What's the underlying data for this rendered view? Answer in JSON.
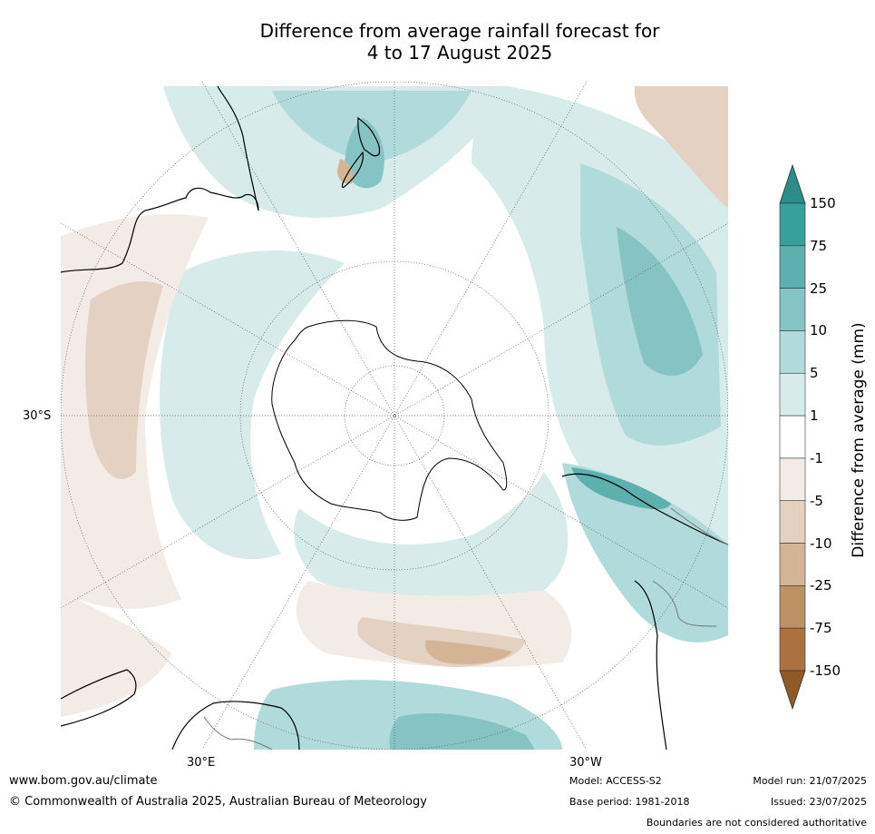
{
  "title_line1": "Difference from average rainfall forecast for",
  "title_line2": "4 to 17 August 2025",
  "labels": {
    "lat": "30°S",
    "lon_e": "30°E",
    "lon_w": "30°W"
  },
  "colorbar": {
    "title": "Difference from average (mm)",
    "ticks": [
      "150",
      "75",
      "25",
      "10",
      "5",
      "1",
      "-1",
      "-5",
      "-10",
      "-25",
      "-75",
      "-150"
    ],
    "colors": [
      "#2b8c8a",
      "#37a09d",
      "#5eb0ae",
      "#85c4c2",
      "#b0dbda",
      "#d7ebea",
      "#ffffff",
      "#f3ebe6",
      "#e3d2c1",
      "#d3b595",
      "#be9165",
      "#a9723e",
      "#8f5a26"
    ]
  },
  "footer": {
    "url": "www.bom.gov.au/climate",
    "copyright": "© Commonwealth of Australia 2025, Australian Bureau of Meteorology",
    "model": "Model: ACCESS-S2",
    "base": "Base period: 1981-2018",
    "run": "Model run: 21/07/2025",
    "issued": "Issued: 23/07/2025",
    "disclaimer": "Boundaries are not considered authoritative"
  }
}
